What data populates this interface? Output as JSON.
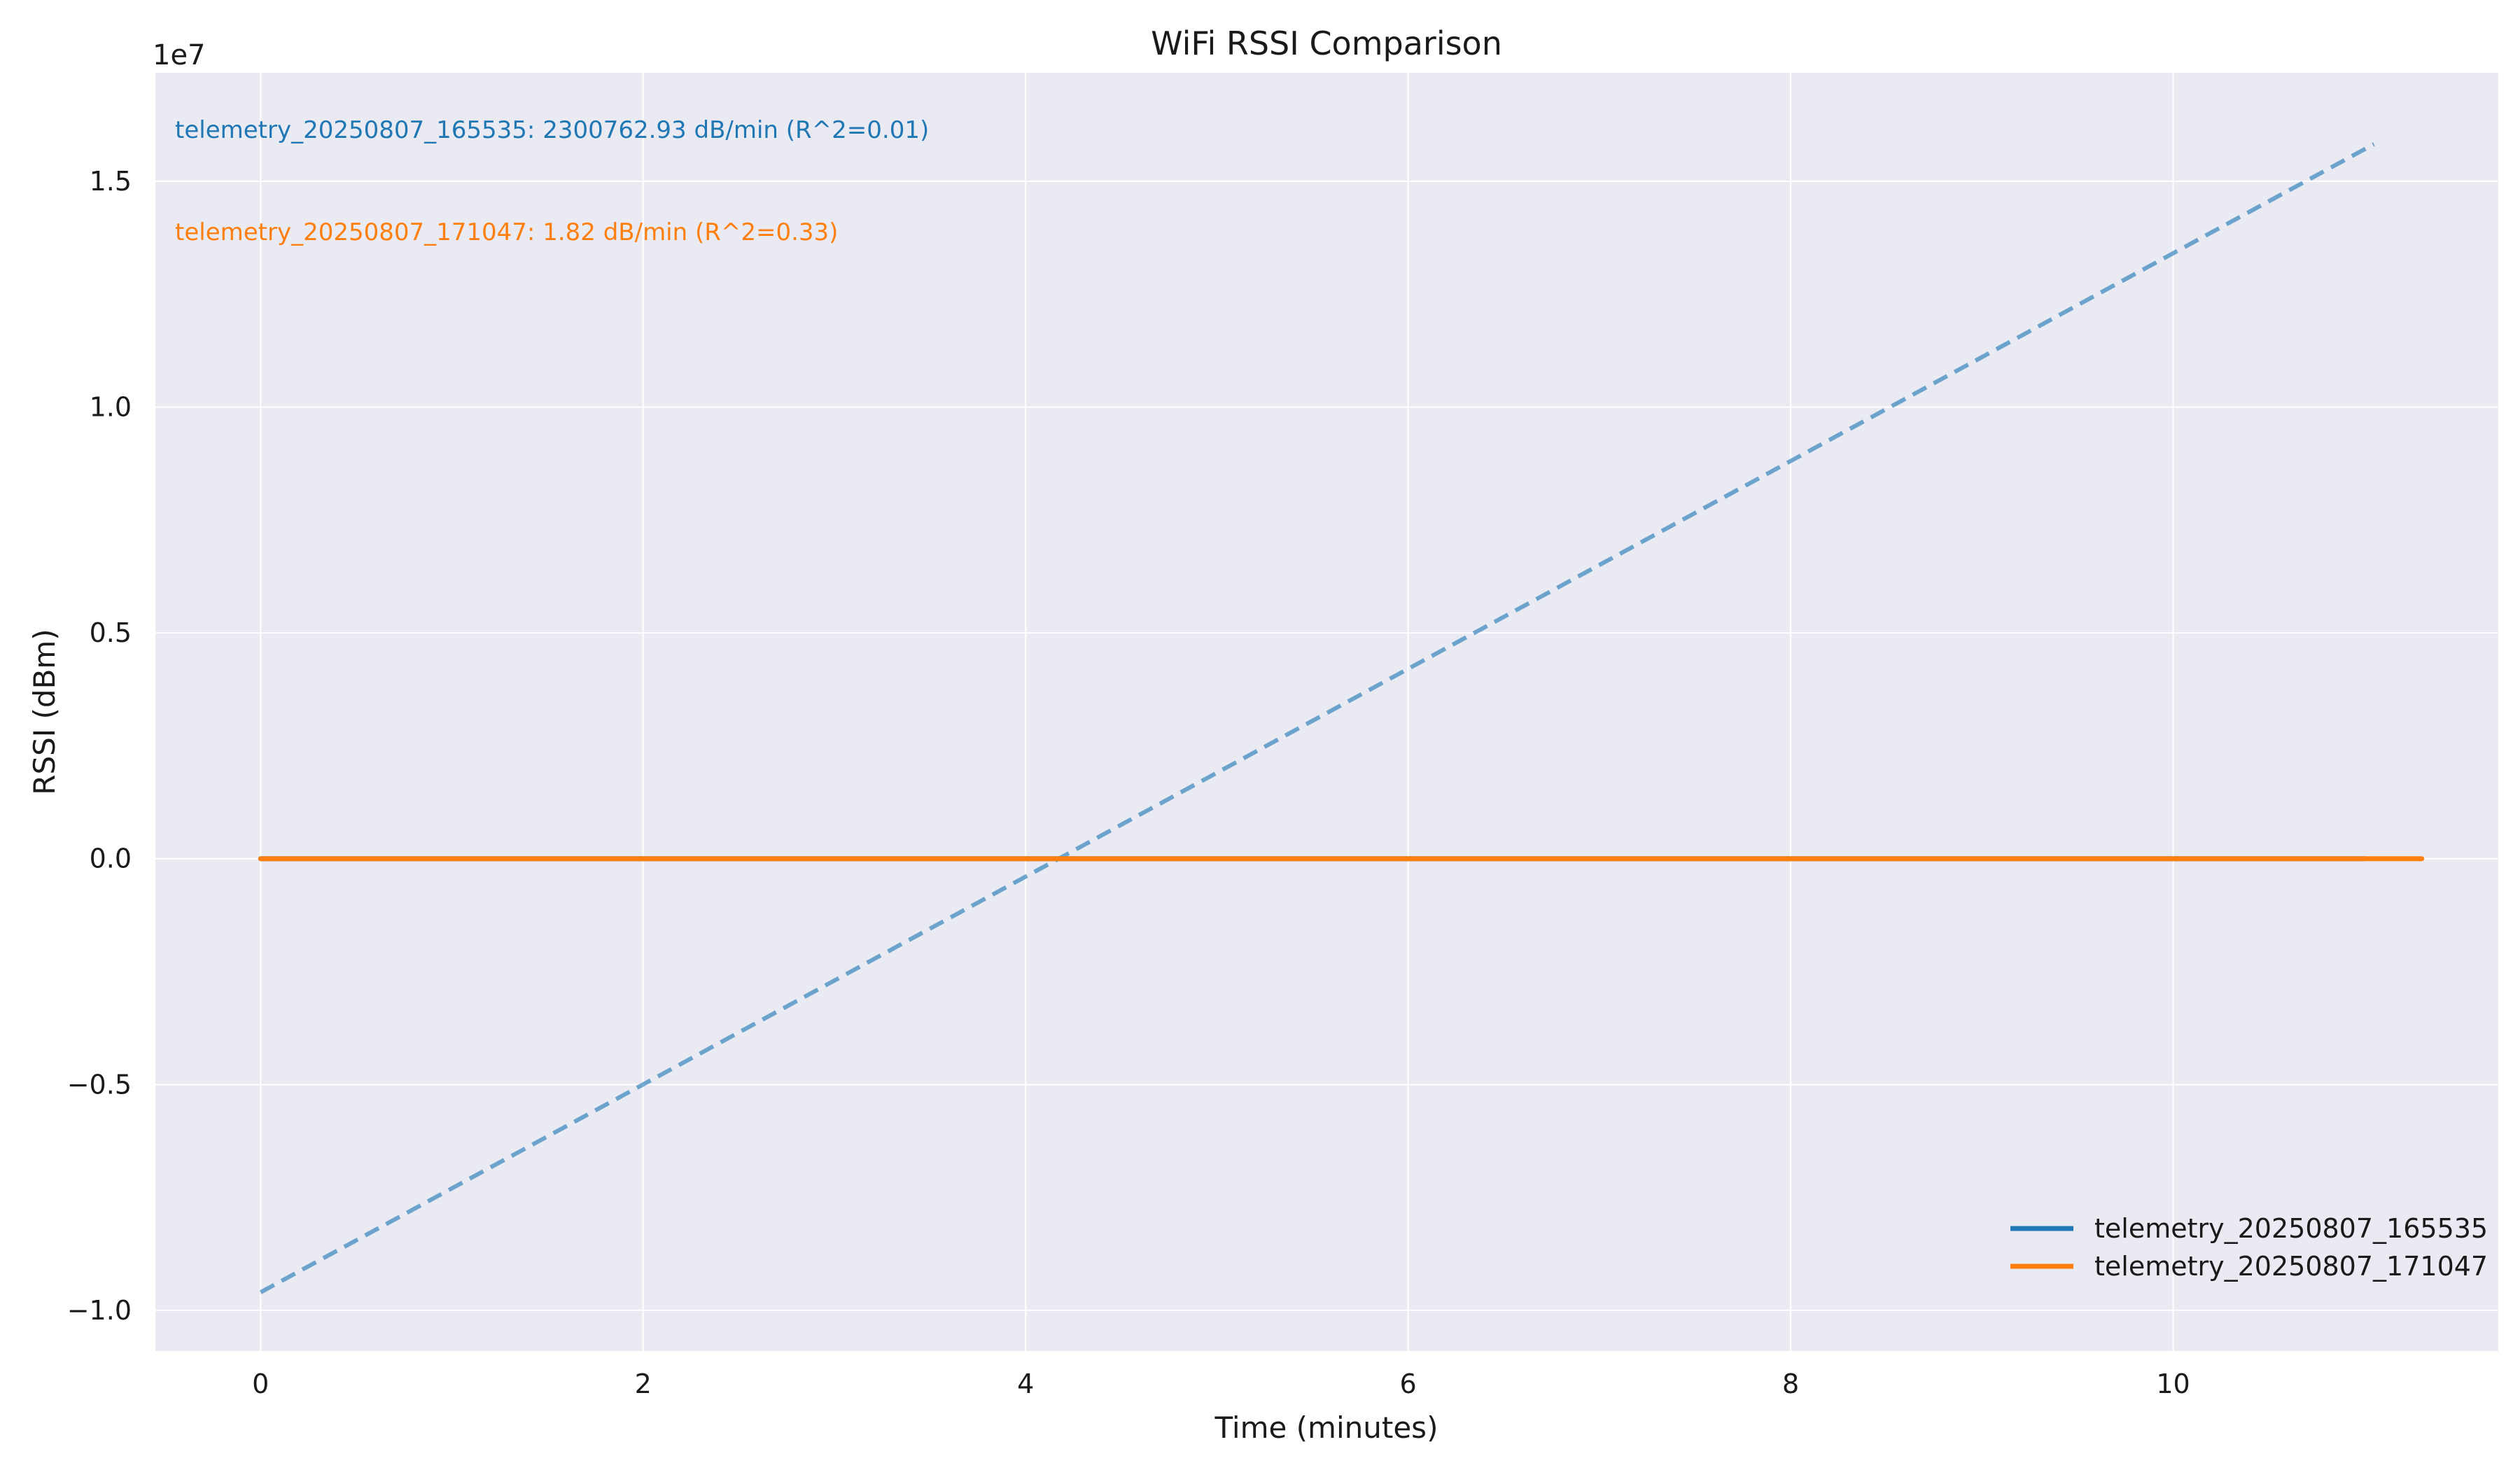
{
  "chart_data": {
    "type": "line",
    "title": "WiFi RSSI Comparison",
    "xlabel": "Time (minutes)",
    "ylabel": "RSSI (dBm)",
    "y_scale_label": "1e7",
    "xlim": [
      -0.55,
      11.7
    ],
    "ylim": [
      -10900000,
      17400000
    ],
    "x_ticks": [
      0,
      2,
      4,
      6,
      8,
      10
    ],
    "x_tick_labels": [
      "0",
      "2",
      "4",
      "6",
      "8",
      "10"
    ],
    "y_ticks": [
      -10000000,
      -5000000,
      0,
      5000000,
      10000000,
      15000000
    ],
    "y_tick_labels": [
      "−1.0",
      "−0.5",
      "0.0",
      "0.5",
      "1.0",
      "1.5"
    ],
    "grid": true,
    "legend_position": "bottom-right",
    "annotations": [
      {
        "text": "telemetry_20250807_165535: 2300762.93 dB/min (R^2=0.01)",
        "color": "#1f77b4"
      },
      {
        "text": "telemetry_20250807_171047: 1.82 dB/min (R^2=0.33)",
        "color": "#ff7f0e"
      }
    ],
    "series": [
      {
        "name": "telemetry_20250807_165535",
        "color": "#1f77b4",
        "style": "solid",
        "x": [
          0.0,
          11.0
        ],
        "y": [
          -68,
          -68
        ]
      },
      {
        "name": "telemetry_20250807_171047",
        "color": "#ff7f0e",
        "style": "solid",
        "x": [
          0.0,
          11.3
        ],
        "y": [
          -55,
          -55
        ]
      },
      {
        "color": "#1f77b4",
        "style": "dashed",
        "x": [
          0.0,
          11.05
        ],
        "y": [
          -9600000,
          15820000
        ]
      }
    ]
  }
}
